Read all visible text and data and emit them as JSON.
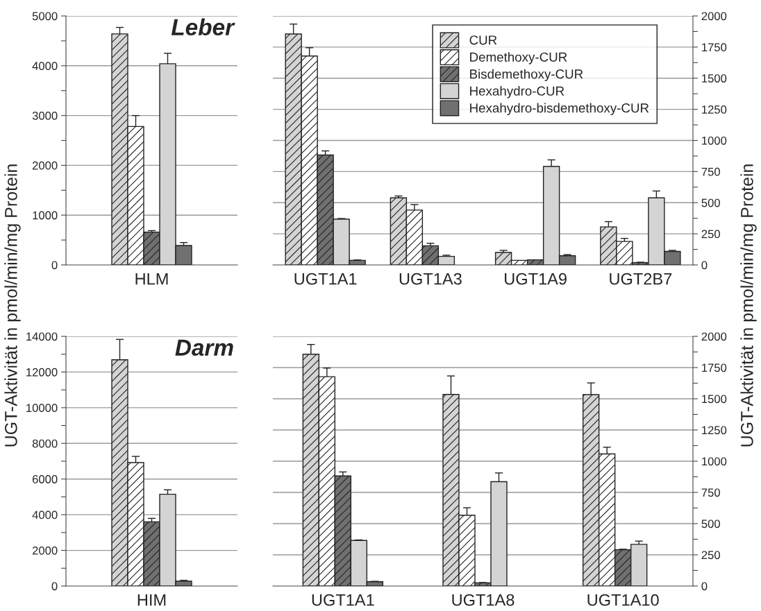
{
  "chart_data": [
    {
      "type": "bar",
      "title": "Leber",
      "ylabel": "UGT-Aktivität in pmol/min/mg Protein",
      "categories": [
        "HLM"
      ],
      "ylim": [
        0,
        5000
      ],
      "yticks": [
        0,
        {
          "value": 500,
          "label": null
        },
        1000,
        {
          "value": 1500,
          "label": null
        },
        2000,
        {
          "value": 2500,
          "label": null
        },
        3000,
        {
          "value": 3500,
          "label": null
        },
        4000,
        {
          "value": 4500,
          "label": null
        },
        5000
      ],
      "grid": "y",
      "legend": false,
      "series": [
        {
          "color": "#d4d4d4",
          "values": [
            4640
          ],
          "errors": [
            130
          ]
        },
        {
          "color": "#ffffff",
          "values": [
            2780
          ],
          "errors": [
            220
          ]
        },
        {
          "color": "#707070",
          "values": [
            660
          ],
          "errors": [
            30
          ]
        },
        {
          "color": "#d4d4d4",
          "values": [
            4040
          ],
          "errors": [
            210
          ]
        },
        {
          "color": "#707070",
          "values": [
            390
          ],
          "errors": [
            60
          ]
        }
      ]
    },
    {
      "type": "bar",
      "ylabel": "UGT-Aktivität in pmol/min/mg Protein",
      "categories": [
        "UGT1A1",
        "UGT1A3",
        "UGT1A9",
        "UGT2B7"
      ],
      "ylim": [
        0,
        2000
      ],
      "yticks": [
        0,
        {
          "value": 125,
          "label": null
        },
        250,
        {
          "value": 375,
          "label": null
        },
        500,
        {
          "value": 625,
          "label": null
        },
        750,
        {
          "value": 875,
          "label": null
        },
        1000,
        {
          "value": 1125,
          "label": null
        },
        1250,
        {
          "value": 1375,
          "label": null
        },
        1500,
        {
          "value": 1625,
          "label": null
        },
        1750,
        {
          "value": 1875,
          "label": null
        },
        2000
      ],
      "grid": "y",
      "legend": "top right",
      "series": [
        {
          "name": "CUR",
          "color": "#d4d4d4",
          "values": [
            1855,
            539,
            100,
            306
          ],
          "errors": [
            80,
            15,
            17,
            42
          ]
        },
        {
          "name": "Demethoxy-CUR",
          "color": "#ffffff",
          "values": [
            1678,
            441,
            37,
            189
          ],
          "errors": [
            67,
            44,
            null,
            24
          ]
        },
        {
          "name": "Bisdemethoxy-CUR",
          "color": "#707070",
          "values": [
            883,
            154,
            41,
            19
          ],
          "errors": [
            33,
            20,
            null,
            3
          ]
        },
        {
          "name": "Hexahydro-CUR",
          "color": "#d4d4d4",
          "values": [
            368,
            69,
            791,
            539
          ],
          "errors": [
            5,
            9,
            53,
            55
          ]
        },
        {
          "name": "Hexahydro-bisdemethoxy-CUR",
          "color": "#707070",
          "values": [
            37,
            null,
            74,
            109
          ],
          "errors": [
            3,
            null,
            9,
            8
          ]
        }
      ]
    },
    {
      "type": "bar",
      "title": "Darm",
      "categories": [
        "HIM"
      ],
      "ylim": [
        0,
        14000
      ],
      "yticks": [
        0,
        {
          "value": 1000,
          "label": null
        },
        2000,
        {
          "value": 3000,
          "label": null
        },
        4000,
        {
          "value": 5000,
          "label": null
        },
        6000,
        {
          "value": 7000,
          "label": null
        },
        8000,
        {
          "value": 9000,
          "label": null
        },
        10000,
        {
          "value": 11000,
          "label": null
        },
        12000,
        {
          "value": 13000,
          "label": null
        },
        14000
      ],
      "grid": "y",
      "legend": false,
      "series": [
        {
          "color": "#d4d4d4",
          "values": [
            12690
          ],
          "errors": [
            1140
          ]
        },
        {
          "color": "#ffffff",
          "values": [
            6920
          ],
          "errors": [
            350
          ]
        },
        {
          "color": "#707070",
          "values": [
            3600
          ],
          "errors": [
            195
          ]
        },
        {
          "color": "#d4d4d4",
          "values": [
            5150
          ],
          "errors": [
            245
          ]
        },
        {
          "color": "#707070",
          "values": [
            270
          ],
          "errors": [
            50
          ]
        }
      ]
    },
    {
      "type": "bar",
      "categories": [
        "UGT1A1",
        "UGT1A8",
        "UGT1A10"
      ],
      "ylim": [
        0,
        2000
      ],
      "yticks": [
        0,
        {
          "value": 125,
          "label": null
        },
        250,
        {
          "value": 375,
          "label": null
        },
        500,
        {
          "value": 625,
          "label": null
        },
        750,
        {
          "value": 875,
          "label": null
        },
        1000,
        {
          "value": 1125,
          "label": null
        },
        1250,
        {
          "value": 1375,
          "label": null
        },
        1500,
        {
          "value": 1625,
          "label": null
        },
        1750,
        {
          "value": 1875,
          "label": null
        },
        2000
      ],
      "grid": "y",
      "legend": false,
      "series": [
        {
          "color": "#d4d4d4",
          "values": [
            1857,
            1535,
            1533
          ],
          "errors": [
            78,
            148,
            94
          ]
        },
        {
          "color": "#ffffff",
          "values": [
            1677,
            567,
            1058
          ],
          "errors": [
            69,
            60,
            54
          ]
        },
        {
          "color": "#707070",
          "values": [
            882,
            26,
            291
          ],
          "errors": [
            32,
            2,
            4
          ]
        },
        {
          "color": "#d4d4d4",
          "values": [
            365,
            836,
            334
          ],
          "errors": [
            4,
            70,
            26
          ]
        },
        {
          "color": "#707070",
          "values": [
            35,
            null,
            null
          ],
          "errors": [
            3,
            null,
            null
          ]
        }
      ]
    }
  ]
}
